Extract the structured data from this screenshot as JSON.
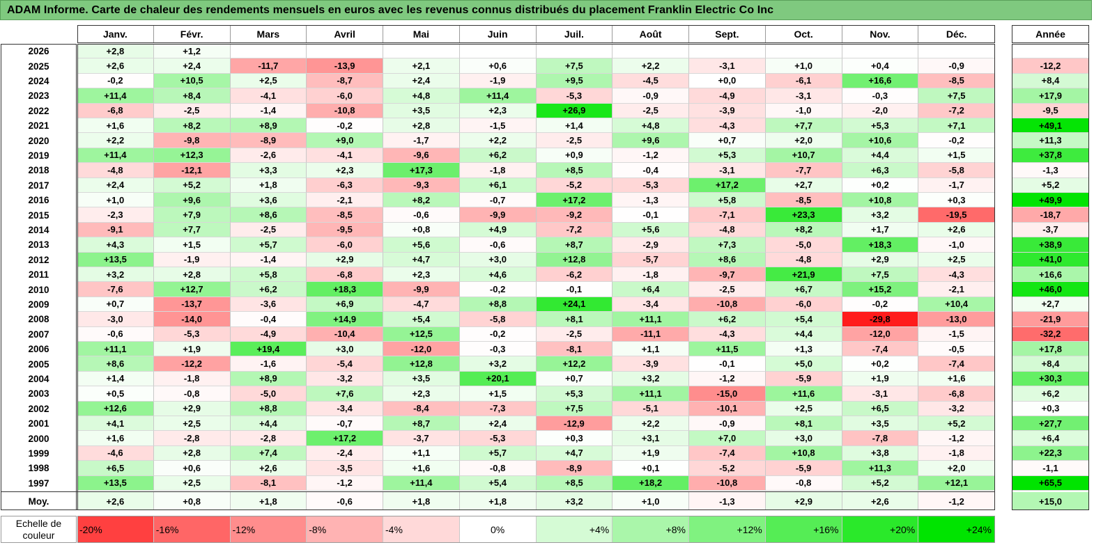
{
  "title": "ADAM Informe. Carte de chaleur des rendements mensuels en euros avec les revenus connus distribués du placement Franklin Electric Co Inc",
  "months": [
    "Janv.",
    "Févr.",
    "Mars",
    "Avril",
    "Mai",
    "Juin",
    "Juil.",
    "Août",
    "Sept.",
    "Oct.",
    "Nov.",
    "Déc."
  ],
  "year_header": "Année",
  "avg_label": "Moy.",
  "scale_label": "Echelle de couleur",
  "colors": {
    "title_bg": "#7fc97f",
    "positive_max": "#00e400",
    "negative_max": "#ff1a1a",
    "neutral": "#ffffff"
  },
  "chart_data": {
    "type": "heatmap",
    "title": "ADAM Informe. Carte de chaleur des rendements mensuels en euros avec les revenus connus distribués du placement Franklin Electric Co Inc",
    "columns": [
      "Janv.",
      "Févr.",
      "Mars",
      "Avril",
      "Mai",
      "Juin",
      "Juil.",
      "Août",
      "Sept.",
      "Oct.",
      "Nov.",
      "Déc.",
      "Année"
    ],
    "rows": [
      {
        "year": "2026",
        "values": [
          "+2,8",
          "+1,2",
          "",
          "",
          "",
          "",
          "",
          "",
          "",
          "",
          "",
          "",
          ""
        ]
      },
      {
        "year": "2025",
        "values": [
          "+2,6",
          "+2,4",
          "-11,7",
          "-13,9",
          "+2,1",
          "+0,6",
          "+7,5",
          "+2,2",
          "-3,1",
          "+1,0",
          "+0,4",
          "-0,9",
          "-12,2"
        ]
      },
      {
        "year": "2024",
        "values": [
          "-0,2",
          "+10,5",
          "+2,5",
          "-8,7",
          "+2,4",
          "-1,9",
          "+9,5",
          "-4,5",
          "+0,0",
          "-6,1",
          "+16,6",
          "-8,5",
          "+8,4"
        ]
      },
      {
        "year": "2023",
        "values": [
          "+11,4",
          "+8,4",
          "-4,1",
          "-6,0",
          "+4,8",
          "+11,4",
          "-5,3",
          "-0,9",
          "-4,9",
          "-3,1",
          "-0,3",
          "+7,5",
          "+17,9"
        ]
      },
      {
        "year": "2022",
        "values": [
          "-6,8",
          "-2,5",
          "-1,4",
          "-10,8",
          "+3,5",
          "+2,3",
          "+26,9",
          "-2,5",
          "-3,9",
          "-1,0",
          "-2,0",
          "-7,2",
          "-9,5"
        ]
      },
      {
        "year": "2021",
        "values": [
          "+1,6",
          "+8,2",
          "+8,9",
          "-0,2",
          "+2,8",
          "-1,5",
          "+1,4",
          "+4,8",
          "-4,3",
          "+7,7",
          "+5,3",
          "+7,1",
          "+49,1"
        ]
      },
      {
        "year": "2020",
        "values": [
          "+2,2",
          "-9,8",
          "-8,9",
          "+9,0",
          "-1,7",
          "+2,2",
          "-2,5",
          "+9,6",
          "+0,7",
          "+2,0",
          "+10,6",
          "-0,2",
          "+11,3"
        ]
      },
      {
        "year": "2019",
        "values": [
          "+11,4",
          "+12,3",
          "-2,6",
          "-4,1",
          "-9,6",
          "+6,2",
          "+0,9",
          "-1,2",
          "+5,3",
          "+10,7",
          "+4,4",
          "+1,5",
          "+37,8"
        ]
      },
      {
        "year": "2018",
        "values": [
          "-4,8",
          "-12,1",
          "+3,3",
          "+2,3",
          "+17,3",
          "-1,8",
          "+8,5",
          "-0,4",
          "-3,1",
          "-7,7",
          "+6,3",
          "-5,8",
          "-1,3"
        ]
      },
      {
        "year": "2017",
        "values": [
          "+2,4",
          "+5,2",
          "+1,8",
          "-6,3",
          "-9,3",
          "+6,1",
          "-5,2",
          "-5,3",
          "+17,2",
          "+2,7",
          "+0,2",
          "-1,7",
          "+5,2"
        ]
      },
      {
        "year": "2016",
        "values": [
          "+1,0",
          "+9,6",
          "+3,6",
          "-2,1",
          "+8,2",
          "-0,7",
          "+17,2",
          "-1,3",
          "+5,8",
          "-8,5",
          "+10,8",
          "+0,3",
          "+49,9"
        ]
      },
      {
        "year": "2015",
        "values": [
          "-2,3",
          "+7,9",
          "+8,6",
          "-8,5",
          "-0,6",
          "-9,9",
          "-9,2",
          "-0,1",
          "-7,1",
          "+23,3",
          "+3,2",
          "-19,5",
          "-18,7"
        ]
      },
      {
        "year": "2014",
        "values": [
          "-9,1",
          "+7,7",
          "-2,5",
          "-9,5",
          "+0,8",
          "+4,9",
          "-7,2",
          "+5,6",
          "-4,8",
          "+8,2",
          "+1,7",
          "+2,6",
          "-3,7"
        ]
      },
      {
        "year": "2013",
        "values": [
          "+4,3",
          "+1,5",
          "+5,7",
          "-6,0",
          "+5,6",
          "-0,6",
          "+8,7",
          "-2,9",
          "+7,3",
          "-5,0",
          "+18,3",
          "-1,0",
          "+38,9"
        ]
      },
      {
        "year": "2012",
        "values": [
          "+13,5",
          "-1,9",
          "-1,4",
          "+2,9",
          "+4,7",
          "+3,0",
          "+12,8",
          "-5,7",
          "+8,6",
          "-4,8",
          "+2,9",
          "+2,5",
          "+41,0"
        ]
      },
      {
        "year": "2011",
        "values": [
          "+3,2",
          "+2,8",
          "+5,8",
          "-6,8",
          "+2,3",
          "+4,6",
          "-6,2",
          "-1,8",
          "-9,7",
          "+21,9",
          "+7,5",
          "-4,3",
          "+16,6"
        ]
      },
      {
        "year": "2010",
        "values": [
          "-7,6",
          "+12,7",
          "+6,2",
          "+18,3",
          "-9,9",
          "-0,2",
          "-0,1",
          "+6,4",
          "-2,5",
          "+6,7",
          "+15,2",
          "-2,1",
          "+46,0"
        ]
      },
      {
        "year": "2009",
        "values": [
          "+0,7",
          "-13,7",
          "-3,6",
          "+6,9",
          "-4,7",
          "+8,8",
          "+24,1",
          "-3,4",
          "-10,8",
          "-6,0",
          "-0,2",
          "+10,4",
          "+2,7"
        ]
      },
      {
        "year": "2008",
        "values": [
          "-3,0",
          "-14,0",
          "-0,4",
          "+14,9",
          "+5,4",
          "-5,8",
          "+8,1",
          "+11,1",
          "+6,2",
          "+5,4",
          "-29,8",
          "-13,0",
          "-21,9"
        ]
      },
      {
        "year": "2007",
        "values": [
          "-0,6",
          "-5,3",
          "-4,9",
          "-10,4",
          "+12,5",
          "-0,2",
          "-2,5",
          "-11,1",
          "-4,3",
          "+4,4",
          "-12,0",
          "-1,5",
          "-32,2"
        ]
      },
      {
        "year": "2006",
        "values": [
          "+11,1",
          "+1,9",
          "+19,4",
          "+3,0",
          "-12,0",
          "-0,3",
          "-8,1",
          "+1,1",
          "+11,5",
          "+1,3",
          "-7,4",
          "-0,5",
          "+17,8"
        ]
      },
      {
        "year": "2005",
        "values": [
          "+8,6",
          "-12,2",
          "-1,6",
          "-5,4",
          "+12,8",
          "+3,2",
          "+12,2",
          "-3,9",
          "-0,1",
          "+5,0",
          "+0,2",
          "-7,4",
          "+8,4"
        ]
      },
      {
        "year": "2004",
        "values": [
          "+1,4",
          "-1,8",
          "+8,9",
          "-3,2",
          "+3,5",
          "+20,1",
          "+0,7",
          "+3,2",
          "-1,2",
          "-5,9",
          "+1,9",
          "+1,6",
          "+30,3"
        ]
      },
      {
        "year": "2003",
        "values": [
          "+0,5",
          "-0,8",
          "-5,0",
          "+7,6",
          "+2,3",
          "+1,5",
          "+5,3",
          "+11,1",
          "-15,0",
          "+11,6",
          "-3,1",
          "-6,8",
          "+6,2"
        ]
      },
      {
        "year": "2002",
        "values": [
          "+12,6",
          "+2,9",
          "+8,8",
          "-3,4",
          "-8,4",
          "-7,3",
          "+7,5",
          "-5,1",
          "-10,1",
          "+2,5",
          "+6,5",
          "-3,2",
          "+0,3"
        ]
      },
      {
        "year": "2001",
        "values": [
          "+4,1",
          "+2,5",
          "+4,4",
          "-0,7",
          "+8,7",
          "+2,4",
          "-12,9",
          "+2,2",
          "-0,9",
          "+8,1",
          "+3,5",
          "+5,2",
          "+27,7"
        ]
      },
      {
        "year": "2000",
        "values": [
          "+1,6",
          "-2,8",
          "-2,8",
          "+17,2",
          "-3,7",
          "-5,3",
          "+0,3",
          "+3,1",
          "+7,0",
          "+3,0",
          "-7,8",
          "-1,2",
          "+6,4"
        ]
      },
      {
        "year": "1999",
        "values": [
          "-4,6",
          "+2,8",
          "+7,4",
          "-2,4",
          "+1,1",
          "+5,7",
          "+4,7",
          "+1,9",
          "-7,4",
          "+10,8",
          "+3,8",
          "-1,8",
          "+22,3"
        ]
      },
      {
        "year": "1998",
        "values": [
          "+6,5",
          "+0,6",
          "+2,6",
          "-3,5",
          "+1,6",
          "-0,8",
          "-8,9",
          "+0,1",
          "-5,2",
          "-5,9",
          "+11,3",
          "+2,0",
          "-1,1"
        ]
      },
      {
        "year": "1997",
        "values": [
          "+13,5",
          "+2,5",
          "-8,1",
          "-1,2",
          "+11,4",
          "+5,4",
          "+8,5",
          "+18,2",
          "-10,8",
          "-0,8",
          "+5,2",
          "+12,1",
          "+65,5"
        ]
      }
    ],
    "averages": [
      "+2,6",
      "+0,8",
      "+1,8",
      "-0,6",
      "+1,8",
      "+1,8",
      "+3,2",
      "+1,0",
      "-1,3",
      "+2,9",
      "+2,6",
      "-1,2",
      "+15,0"
    ],
    "color_scale": [
      "-20%",
      "-16%",
      "-12%",
      "-8%",
      "-4%",
      "0%",
      "+4%",
      "+8%",
      "+12%",
      "+16%",
      "+20%",
      "+24%"
    ],
    "scale_values": [
      -20,
      -16,
      -12,
      -8,
      -4,
      0,
      4,
      8,
      12,
      16,
      20,
      24
    ]
  }
}
